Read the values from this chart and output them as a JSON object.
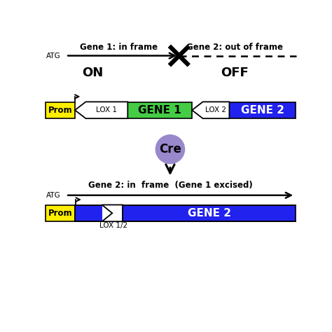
{
  "fig_width": 4.74,
  "fig_height": 4.74,
  "dpi": 100,
  "bg_color": "#ffffff",
  "top_label1": "Gene 1: in frame",
  "top_label2": "Gene 2: out of frame",
  "atg_label_top": "ATG",
  "on_label": "ON",
  "off_label": "OFF",
  "prom_color": "#ffee00",
  "gene1_color": "#44cc44",
  "gene2_color": "#2222ee",
  "cre_color": "#9988cc",
  "cre_label": "Cre",
  "bottom_title": "Gene 2: in  frame  (Gene 1 excised)",
  "atg_label_bottom": "ATG",
  "lox12_label": "LOX 1/2",
  "lox1_label": "LOX 1",
  "lox2_label": "LOX 2",
  "gene1_label": "GENE 1",
  "gene2_label_top": "GENE 2",
  "gene2_label_bottom": "GENE 2",
  "prom_label": "Prom",
  "xlim": [
    0,
    10
  ],
  "ylim": [
    0,
    10
  ]
}
